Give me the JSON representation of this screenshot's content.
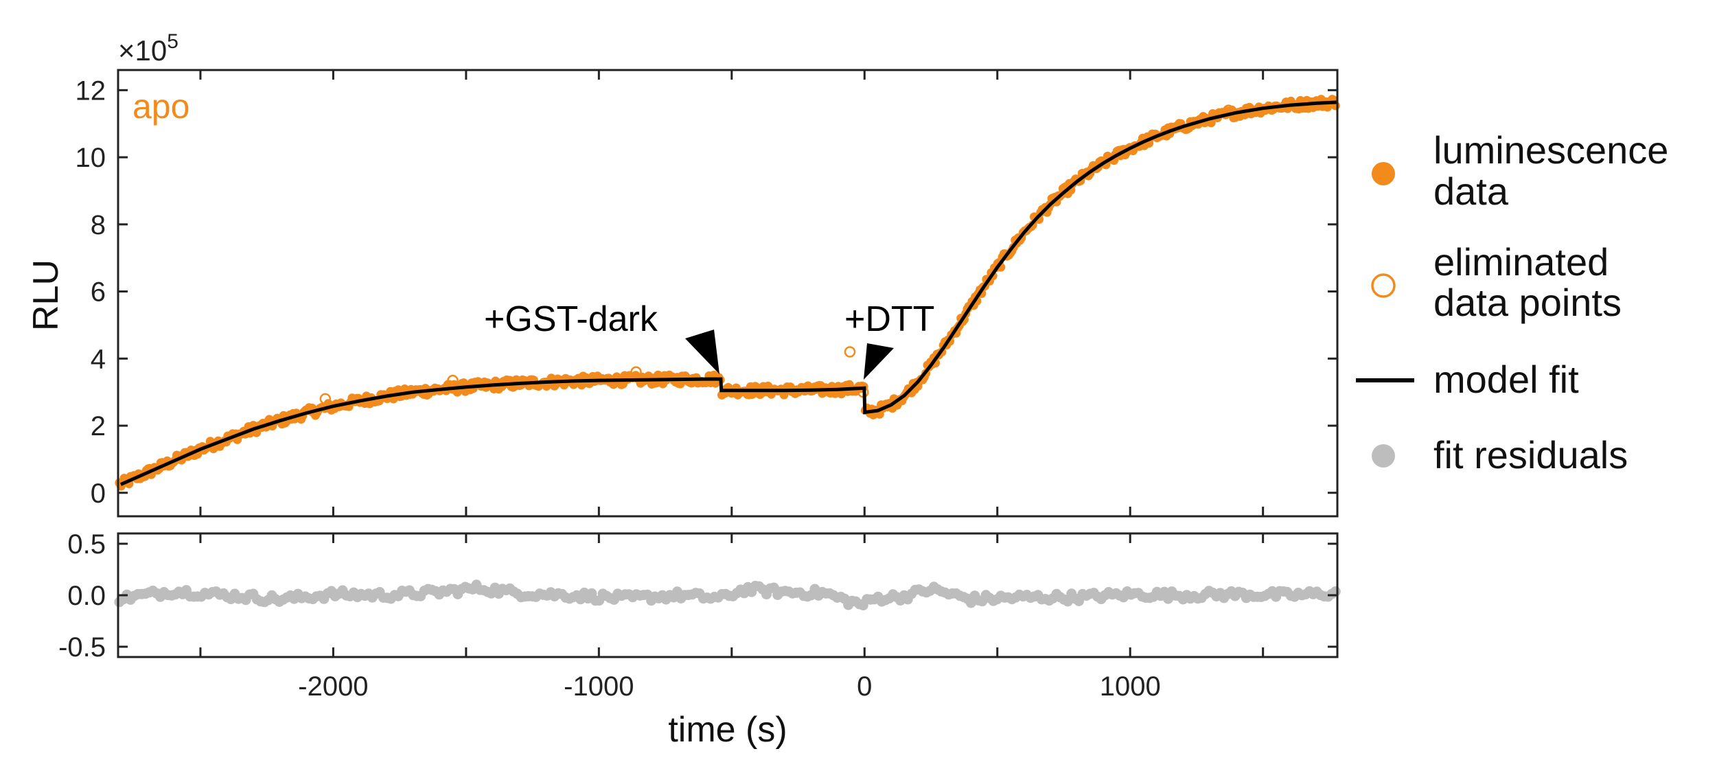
{
  "colors": {
    "data": "#f28a1c",
    "fit": "#000000",
    "residual": "#bdbdbd",
    "axis": "#222222"
  },
  "chart_data": {
    "type": "scatter",
    "panel_label": "apo",
    "xlabel": "time (s)",
    "ylabel": "RLU",
    "y_multiplier": "×10",
    "y_multiplier_exp": "5",
    "xlim": [
      -2810,
      1780
    ],
    "ylim_main": [
      -0.7,
      12.6
    ],
    "ylim_residual": [
      -0.6,
      0.6
    ],
    "x_ticks": [
      -2000,
      -1000,
      0,
      1000
    ],
    "x_tick_labels": [
      "-2000",
      "-1000",
      "0",
      "1000"
    ],
    "y_ticks_main": [
      0,
      2,
      4,
      6,
      8,
      10,
      12
    ],
    "y_tick_labels_main": [
      "0",
      "2",
      "4",
      "6",
      "8",
      "10",
      "12"
    ],
    "y_ticks_residual": [
      -0.5,
      0.0,
      0.5
    ],
    "y_tick_labels_residual": [
      "-0.5",
      "0.0",
      "0.5"
    ],
    "annotations": [
      {
        "text": "+GST-dark",
        "x": -540
      },
      {
        "text": "+DTT",
        "x": 0
      }
    ],
    "legend": {
      "placement": "right",
      "entries": [
        {
          "marker": "filled-circle",
          "lines": [
            "luminescence",
            "data"
          ]
        },
        {
          "marker": "open-circle",
          "lines": [
            "eliminated",
            "data points"
          ]
        },
        {
          "marker": "line",
          "lines": [
            "model fit"
          ]
        },
        {
          "marker": "gray-circle",
          "lines": [
            "fit residuals"
          ]
        }
      ]
    },
    "series": [
      {
        "name": "model fit",
        "x": [
          -2800,
          -2700,
          -2600,
          -2500,
          -2400,
          -2300,
          -2200,
          -2100,
          -2000,
          -1900,
          -1800,
          -1700,
          -1600,
          -1500,
          -1400,
          -1300,
          -1200,
          -1100,
          -1000,
          -900,
          -800,
          -700,
          -600,
          -541,
          -539,
          -400,
          -300,
          -200,
          -100,
          -1,
          1,
          50,
          100,
          150,
          200,
          250,
          300,
          350,
          400,
          450,
          500,
          550,
          600,
          650,
          700,
          750,
          800,
          850,
          900,
          950,
          1000,
          1050,
          1100,
          1150,
          1200,
          1300,
          1400,
          1500,
          1600,
          1700,
          1780
        ],
        "y": [
          0.25,
          0.6,
          0.95,
          1.3,
          1.6,
          1.9,
          2.15,
          2.38,
          2.58,
          2.74,
          2.88,
          3.0,
          3.08,
          3.15,
          3.21,
          3.26,
          3.3,
          3.33,
          3.35,
          3.36,
          3.37,
          3.38,
          3.39,
          3.39,
          3.05,
          3.05,
          3.05,
          3.06,
          3.08,
          3.12,
          2.4,
          2.45,
          2.62,
          2.9,
          3.3,
          3.8,
          4.35,
          4.95,
          5.55,
          6.15,
          6.72,
          7.25,
          7.75,
          8.2,
          8.6,
          8.95,
          9.28,
          9.57,
          9.83,
          10.06,
          10.27,
          10.46,
          10.63,
          10.78,
          10.92,
          11.15,
          11.33,
          11.46,
          11.55,
          11.61,
          11.64
        ]
      },
      {
        "name": "eliminated data points",
        "x": [
          -2030,
          -1550,
          -860,
          -55,
          -5,
          1370
        ],
        "y": [
          2.8,
          3.35,
          3.6,
          4.2,
          3.0,
          11.4
        ]
      }
    ],
    "residual_profile": {
      "x": [
        -2800,
        -2600,
        -2400,
        -2200,
        -2000,
        -1800,
        -1600,
        -1450,
        -1300,
        -1100,
        -900,
        -700,
        -540,
        -450,
        -300,
        -150,
        -60,
        -5,
        40,
        150,
        250,
        400,
        600,
        800,
        1000,
        1200,
        1400,
        1600,
        1780
      ],
      "y": [
        -0.03,
        0.04,
        0.0,
        -0.04,
        0.01,
        0.0,
        0.03,
        0.07,
        0.02,
        0.0,
        -0.03,
        0.0,
        -0.03,
        0.06,
        0.03,
        0.02,
        -0.06,
        -0.09,
        -0.03,
        -0.01,
        0.06,
        -0.04,
        -0.02,
        -0.02,
        0.01,
        0.0,
        0.01,
        0.0,
        0.02
      ]
    }
  }
}
